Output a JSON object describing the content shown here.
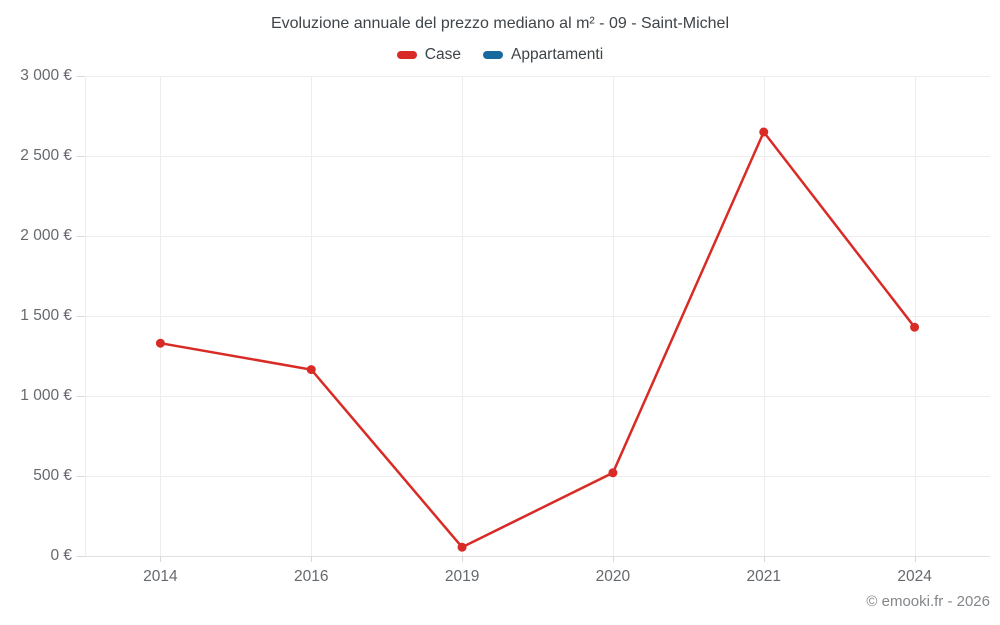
{
  "title": "Evoluzione annuale del prezzo mediano al m² - 09 - Saint-Michel",
  "legend": {
    "items": [
      {
        "label": "Case",
        "color": "#d92b26"
      },
      {
        "label": "Appartamenti",
        "color": "#17699e"
      }
    ]
  },
  "footer": {
    "copyright": "© emooki.fr - 2026"
  },
  "chart_data": {
    "type": "line",
    "title": "Evoluzione annuale del prezzo mediano al m² - 09 - Saint-Michel",
    "categories": [
      "2014",
      "2016",
      "2019",
      "2020",
      "2021",
      "2024"
    ],
    "series": [
      {
        "name": "Case",
        "color": "#d92b26",
        "values": [
          1330,
          1165,
          55,
          520,
          2650,
          1430
        ]
      },
      {
        "name": "Appartamenti",
        "color": "#17699e",
        "values": []
      }
    ],
    "xlabel": "",
    "ylabel": "",
    "ylim": [
      0,
      3000
    ],
    "yticks": [
      0,
      500,
      1000,
      1500,
      2000,
      2500,
      3000
    ],
    "ytick_labels": [
      "0 €",
      "500 €",
      "1 000 €",
      "1 500 €",
      "2 000 €",
      "2 500 €",
      "3 000 €"
    ],
    "grid": true,
    "legend_position": "top",
    "marker_radius": 4.5,
    "line_width": 2.5
  }
}
